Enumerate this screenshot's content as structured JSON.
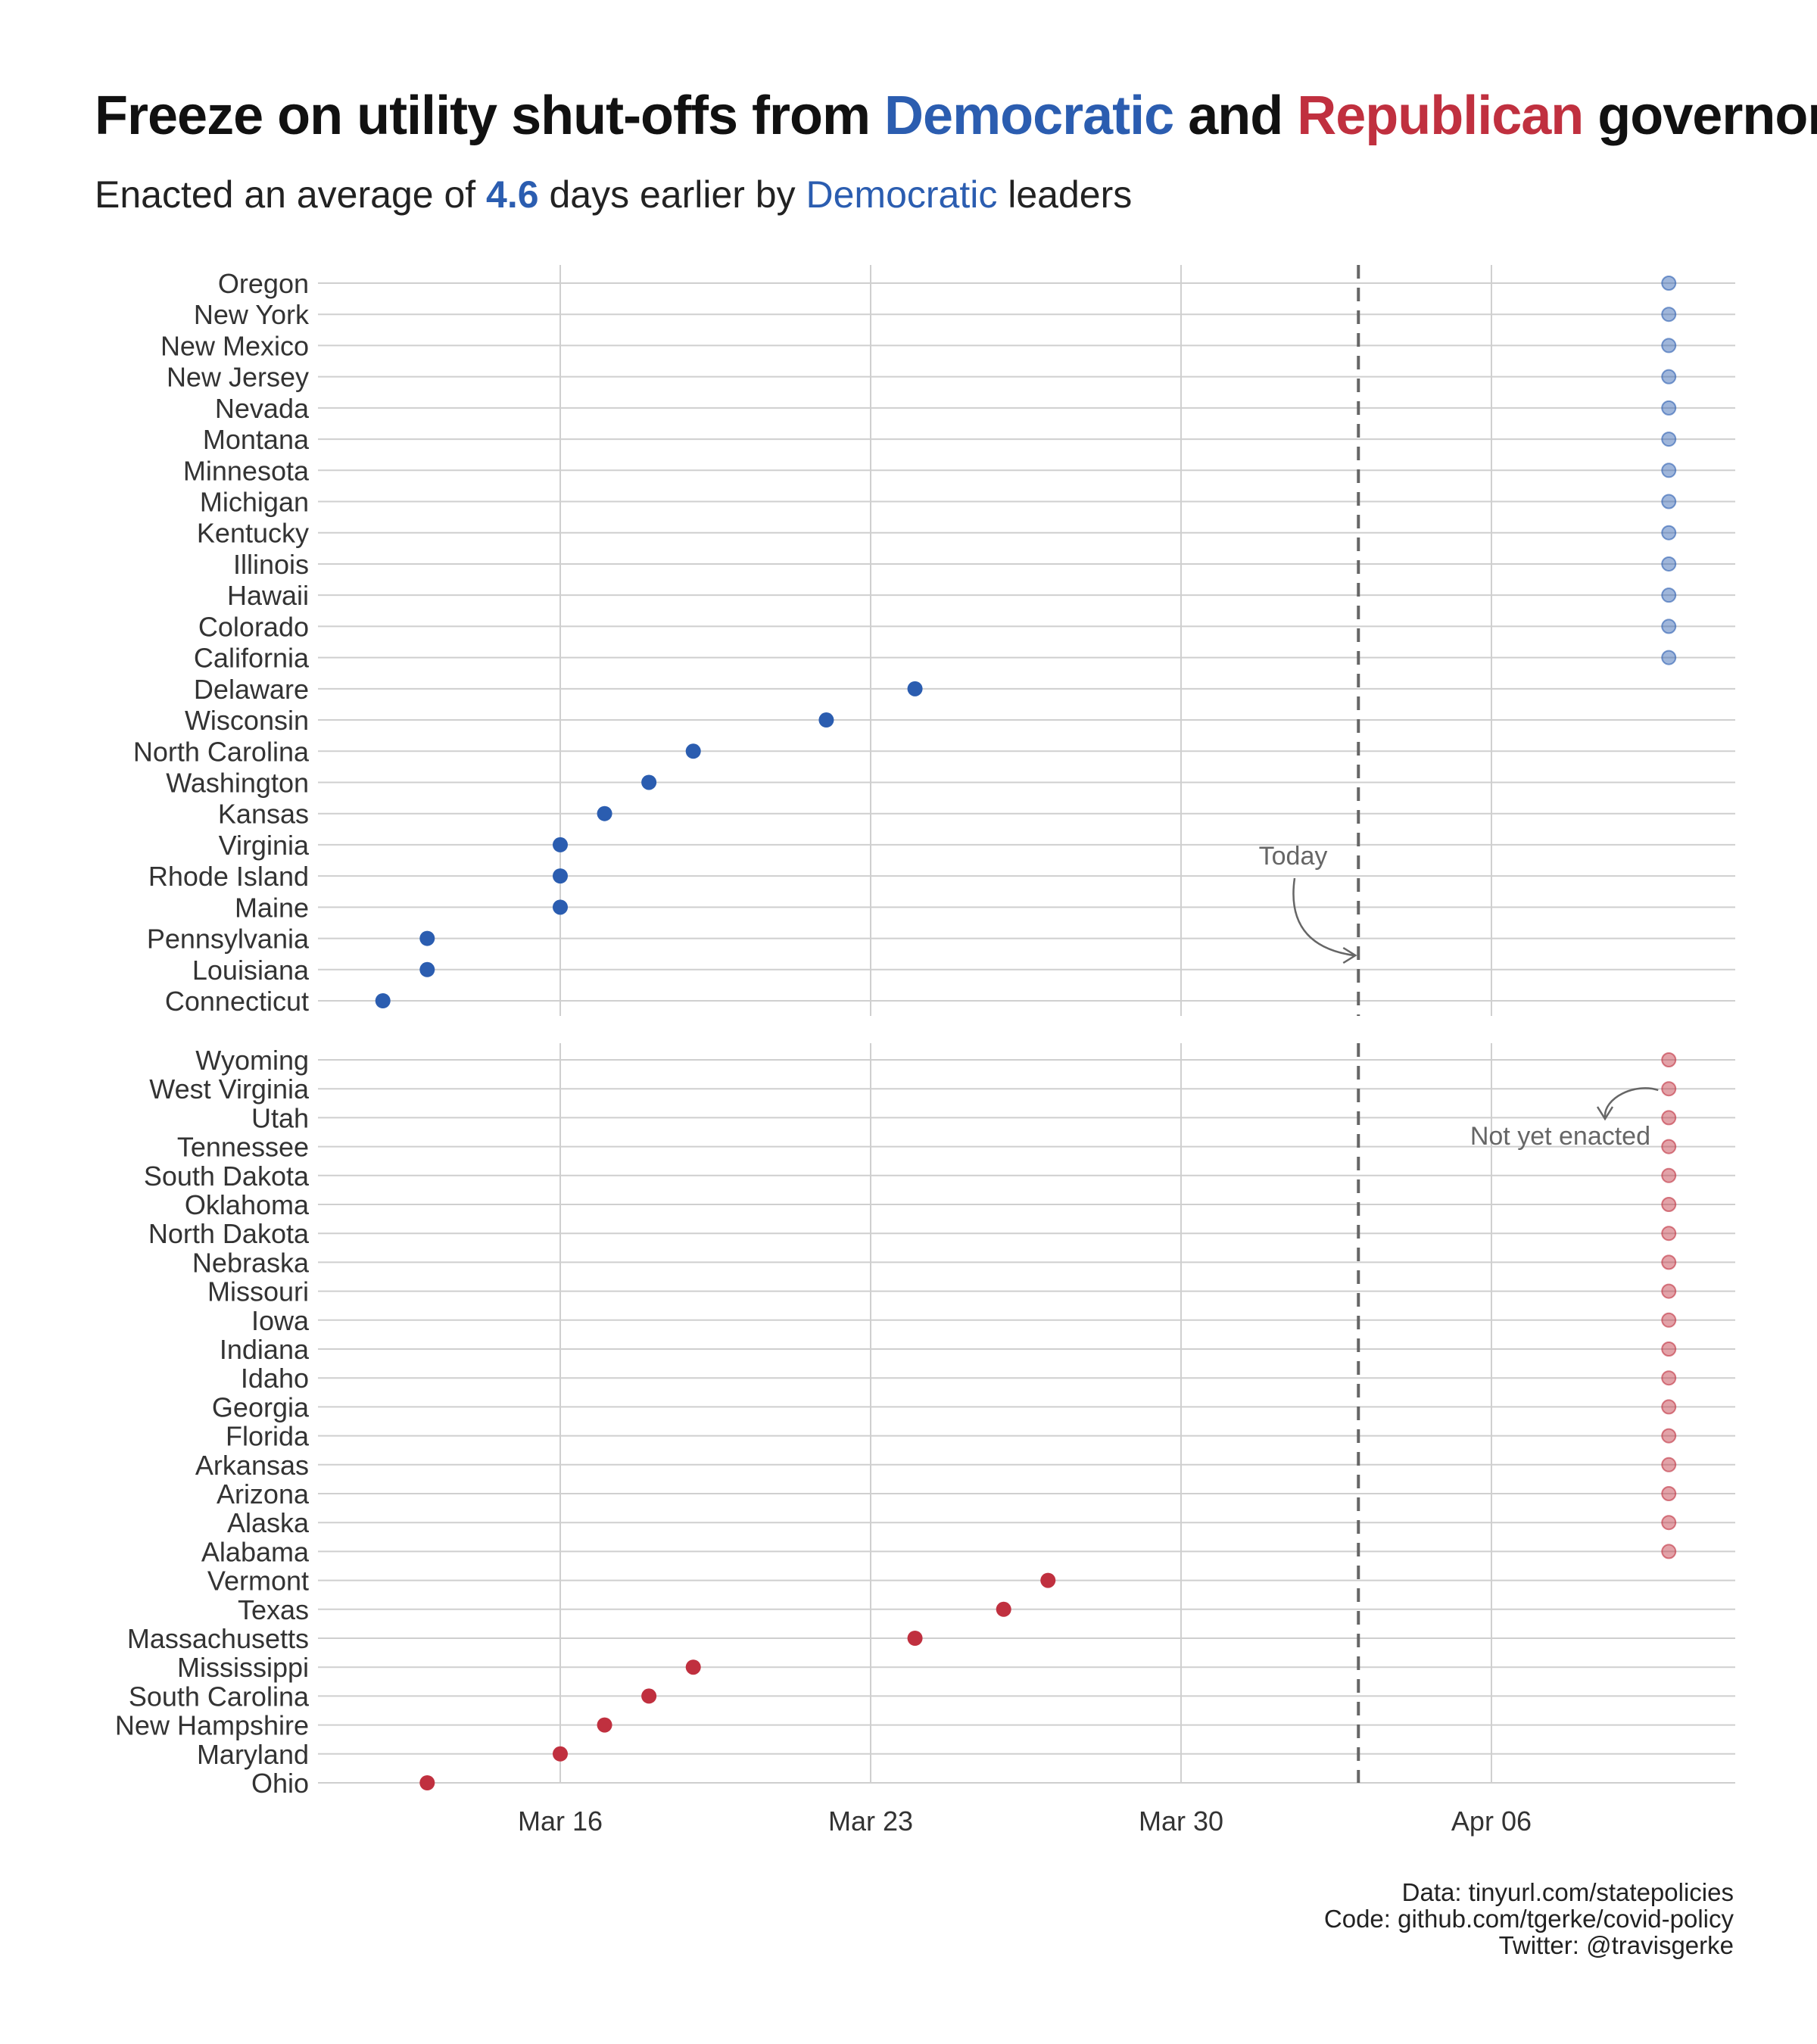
{
  "title": {
    "prefix": "Freeze on utility shut-offs from ",
    "dem": "Democratic",
    "mid": " and ",
    "rep": "Republican",
    "suffix": " governors"
  },
  "subtitle": {
    "prefix": "Enacted an average of ",
    "value": "4.6",
    "mid": " days earlier by ",
    "dem": "Democratic",
    "suffix": " leaders"
  },
  "caption": {
    "line1": "Data: tinyurl.com/statepolicies",
    "line2": "Code: github.com/tgerke/covid-policy",
    "line3": "Twitter: @travisgerke"
  },
  "colors": {
    "democratic": "#2B5DB0",
    "republican": "#C0303F",
    "grid": "#CFCFCF",
    "today_line": "#666666"
  },
  "chart_data": {
    "type": "scatter",
    "x_axis": {
      "type": "date",
      "ticks": [
        "2020-03-16",
        "2020-03-23",
        "2020-03-30",
        "2020-04-06"
      ],
      "tick_labels": [
        "Mar 16",
        "Mar 23",
        "Mar 30",
        "Apr 06"
      ]
    },
    "today": "2020-04-03",
    "not_yet_enacted_plot_date": "2020-04-10",
    "annotations": {
      "today_label": "Today",
      "not_yet_label": "Not yet enacted"
    },
    "panels": [
      {
        "party": "Democratic",
        "states": [
          {
            "state": "Oregon",
            "date": null
          },
          {
            "state": "New York",
            "date": null
          },
          {
            "state": "New Mexico",
            "date": null
          },
          {
            "state": "New Jersey",
            "date": null
          },
          {
            "state": "Nevada",
            "date": null
          },
          {
            "state": "Montana",
            "date": null
          },
          {
            "state": "Minnesota",
            "date": null
          },
          {
            "state": "Michigan",
            "date": null
          },
          {
            "state": "Kentucky",
            "date": null
          },
          {
            "state": "Illinois",
            "date": null
          },
          {
            "state": "Hawaii",
            "date": null
          },
          {
            "state": "Colorado",
            "date": null
          },
          {
            "state": "California",
            "date": null
          },
          {
            "state": "Delaware",
            "date": "2020-03-24"
          },
          {
            "state": "Wisconsin",
            "date": "2020-03-22"
          },
          {
            "state": "North Carolina",
            "date": "2020-03-19"
          },
          {
            "state": "Washington",
            "date": "2020-03-18"
          },
          {
            "state": "Kansas",
            "date": "2020-03-17"
          },
          {
            "state": "Virginia",
            "date": "2020-03-16"
          },
          {
            "state": "Rhode Island",
            "date": "2020-03-16"
          },
          {
            "state": "Maine",
            "date": "2020-03-16"
          },
          {
            "state": "Pennsylvania",
            "date": "2020-03-13"
          },
          {
            "state": "Louisiana",
            "date": "2020-03-13"
          },
          {
            "state": "Connecticut",
            "date": "2020-03-12"
          }
        ]
      },
      {
        "party": "Republican",
        "states": [
          {
            "state": "Wyoming",
            "date": null
          },
          {
            "state": "West Virginia",
            "date": null
          },
          {
            "state": "Utah",
            "date": null
          },
          {
            "state": "Tennessee",
            "date": null
          },
          {
            "state": "South Dakota",
            "date": null
          },
          {
            "state": "Oklahoma",
            "date": null
          },
          {
            "state": "North Dakota",
            "date": null
          },
          {
            "state": "Nebraska",
            "date": null
          },
          {
            "state": "Missouri",
            "date": null
          },
          {
            "state": "Iowa",
            "date": null
          },
          {
            "state": "Indiana",
            "date": null
          },
          {
            "state": "Idaho",
            "date": null
          },
          {
            "state": "Georgia",
            "date": null
          },
          {
            "state": "Florida",
            "date": null
          },
          {
            "state": "Arkansas",
            "date": null
          },
          {
            "state": "Arizona",
            "date": null
          },
          {
            "state": "Alaska",
            "date": null
          },
          {
            "state": "Alabama",
            "date": null
          },
          {
            "state": "Vermont",
            "date": "2020-03-27"
          },
          {
            "state": "Texas",
            "date": "2020-03-26"
          },
          {
            "state": "Massachusetts",
            "date": "2020-03-24"
          },
          {
            "state": "Mississippi",
            "date": "2020-03-19"
          },
          {
            "state": "South Carolina",
            "date": "2020-03-18"
          },
          {
            "state": "New Hampshire",
            "date": "2020-03-17"
          },
          {
            "state": "Maryland",
            "date": "2020-03-16"
          },
          {
            "state": "Ohio",
            "date": "2020-03-13"
          }
        ]
      }
    ]
  }
}
